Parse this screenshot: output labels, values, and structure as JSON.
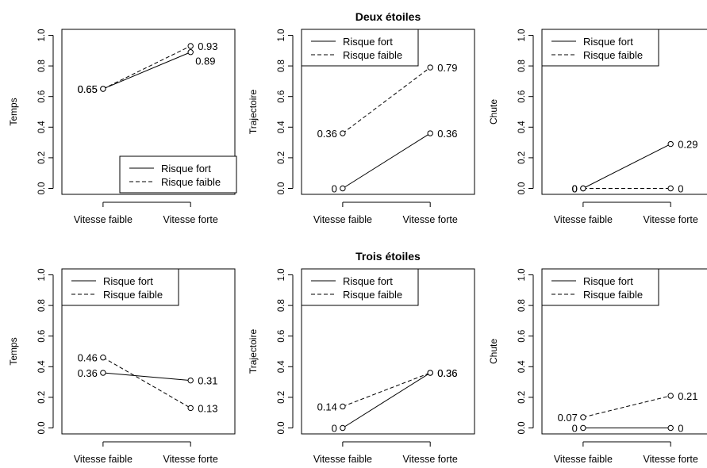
{
  "chart_data": [
    {
      "type": "line",
      "title": "",
      "xlabel": "",
      "ylabel": "Temps",
      "categories": [
        "Vitesse faible",
        "Vitesse forte"
      ],
      "ylim": [
        0,
        1
      ],
      "yticks": [
        "0.0",
        "0.2",
        "0.4",
        "0.6",
        "0.8",
        "1.0"
      ],
      "legend": {
        "position": "bottom-right"
      },
      "series": [
        {
          "name": "Risque fort",
          "linestyle": "solid",
          "values": [
            0.65,
            0.89
          ],
          "labels": [
            "0.65",
            "0.89"
          ],
          "label_side": [
            "left",
            "below-right"
          ]
        },
        {
          "name": "Risque faible",
          "linestyle": "dashed",
          "values": [
            0.65,
            0.93
          ],
          "labels": [
            "0.65",
            "0.93"
          ],
          "label_side": [
            "left",
            "right"
          ]
        }
      ]
    },
    {
      "type": "line",
      "title": "Deux étoiles",
      "xlabel": "",
      "ylabel": "Trajectoire",
      "categories": [
        "Vitesse faible",
        "Vitesse forte"
      ],
      "ylim": [
        0,
        1
      ],
      "yticks": [
        "0.0",
        "0.2",
        "0.4",
        "0.6",
        "0.8",
        "1.0"
      ],
      "legend": {
        "position": "top-left"
      },
      "series": [
        {
          "name": "Risque fort",
          "linestyle": "solid",
          "values": [
            0,
            0.36
          ],
          "labels": [
            "0",
            "0.36"
          ],
          "label_side": [
            "left",
            "right"
          ]
        },
        {
          "name": "Risque faible",
          "linestyle": "dashed",
          "values": [
            0.36,
            0.79
          ],
          "labels": [
            "0.36",
            "0.79"
          ],
          "label_side": [
            "left",
            "right"
          ]
        }
      ]
    },
    {
      "type": "line",
      "title": "",
      "xlabel": "",
      "ylabel": "Chute",
      "categories": [
        "Vitesse faible",
        "Vitesse forte"
      ],
      "ylim": [
        0,
        1
      ],
      "yticks": [
        "0.0",
        "0.2",
        "0.4",
        "0.6",
        "0.8",
        "1.0"
      ],
      "legend": {
        "position": "top-left"
      },
      "series": [
        {
          "name": "Risque fort",
          "linestyle": "solid",
          "values": [
            0,
            0.29
          ],
          "labels": [
            "0",
            "0.29"
          ],
          "label_side": [
            "left",
            "right"
          ]
        },
        {
          "name": "Risque faible",
          "linestyle": "dashed",
          "values": [
            0,
            0
          ],
          "labels": [
            "0",
            "0"
          ],
          "label_side": [
            "left",
            "right"
          ]
        }
      ]
    },
    {
      "type": "line",
      "title": "",
      "xlabel": "",
      "ylabel": "Temps",
      "categories": [
        "Vitesse faible",
        "Vitesse forte"
      ],
      "ylim": [
        0,
        1
      ],
      "yticks": [
        "0.0",
        "0.2",
        "0.4",
        "0.6",
        "0.8",
        "1.0"
      ],
      "legend": {
        "position": "top-left"
      },
      "series": [
        {
          "name": "Risque fort",
          "linestyle": "solid",
          "values": [
            0.36,
            0.31
          ],
          "labels": [
            "0.36",
            "0.31"
          ],
          "label_side": [
            "left",
            "right"
          ]
        },
        {
          "name": "Risque faible",
          "linestyle": "dashed",
          "values": [
            0.46,
            0.13
          ],
          "labels": [
            "0.46",
            "0.13"
          ],
          "label_side": [
            "left",
            "right"
          ]
        }
      ]
    },
    {
      "type": "line",
      "title": "Trois étoiles",
      "xlabel": "",
      "ylabel": "Trajectoire",
      "categories": [
        "Vitesse faible",
        "Vitesse forte"
      ],
      "ylim": [
        0,
        1
      ],
      "yticks": [
        "0.0",
        "0.2",
        "0.4",
        "0.6",
        "0.8",
        "1.0"
      ],
      "legend": {
        "position": "top-left"
      },
      "series": [
        {
          "name": "Risque fort",
          "linestyle": "solid",
          "values": [
            0,
            0.36
          ],
          "labels": [
            "0",
            "0.36"
          ],
          "label_side": [
            "left",
            "right"
          ]
        },
        {
          "name": "Risque faible",
          "linestyle": "dashed",
          "values": [
            0.14,
            0.36
          ],
          "labels": [
            "0.14",
            "0.36"
          ],
          "label_side": [
            "left",
            "right"
          ]
        }
      ]
    },
    {
      "type": "line",
      "title": "",
      "xlabel": "",
      "ylabel": "Chute",
      "categories": [
        "Vitesse faible",
        "Vitesse forte"
      ],
      "ylim": [
        0,
        1
      ],
      "yticks": [
        "0.0",
        "0.2",
        "0.4",
        "0.6",
        "0.8",
        "1.0"
      ],
      "legend": {
        "position": "top-left"
      },
      "series": [
        {
          "name": "Risque fort",
          "linestyle": "solid",
          "values": [
            0,
            0
          ],
          "labels": [
            "0",
            "0"
          ],
          "label_side": [
            "left",
            "right"
          ]
        },
        {
          "name": "Risque faible",
          "linestyle": "dashed",
          "values": [
            0.07,
            0.21
          ],
          "labels": [
            "0.07",
            "0.21"
          ],
          "label_side": [
            "left",
            "right"
          ]
        }
      ]
    }
  ]
}
